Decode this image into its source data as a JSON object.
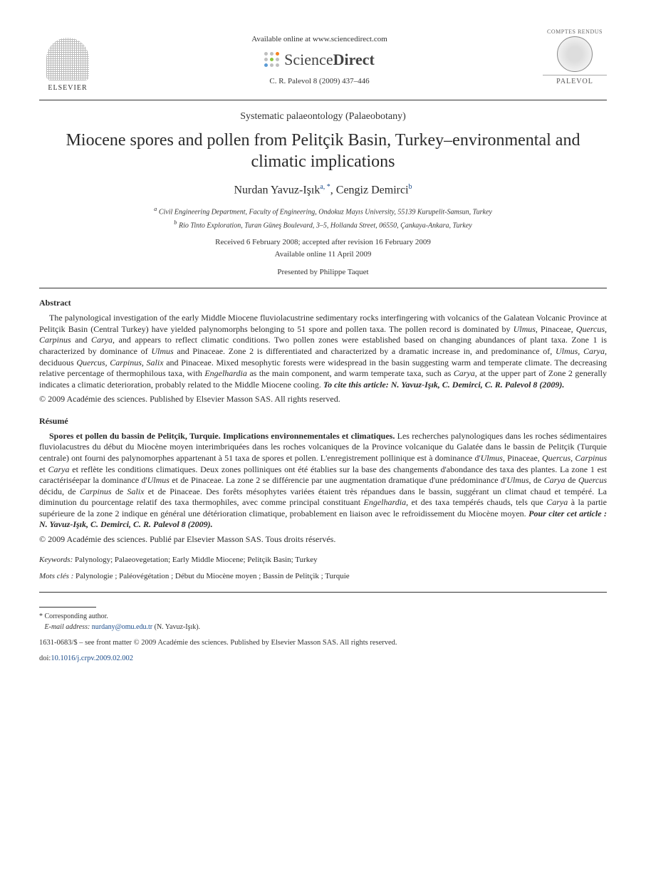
{
  "header": {
    "elsevier": "ELSEVIER",
    "available_online": "Available online at www.sciencedirect.com",
    "sciencedirect_prefix": "Science",
    "sciencedirect_suffix": "Direct",
    "citation": "C. R. Palevol 8 (2009) 437–446",
    "journal_top": "COMPTES RENDUS",
    "journal_name": "PALEVOL"
  },
  "section": "Systematic palaeontology (Palaeobotany)",
  "title": "Miocene spores and pollen from Pelitçik Basin, Turkey–environmental and climatic implications",
  "authors": {
    "a1_name": "Nurdan Yavuz-Işık",
    "a1_sup": "a, *",
    "sep": ", ",
    "a2_name": "Cengiz Demirci",
    "a2_sup": "b"
  },
  "affiliations": {
    "a": "Civil Engineering Department, Faculty of Engineering, Ondokuz Mayıs University, 55139 Kurupelit-Samsun, Turkey",
    "b": "Rio Tinto Exploration, Turan Güneş Boulevard, 3–5, Hollanda Street, 06550, Çankaya-Ankara, Turkey"
  },
  "dates": {
    "received": "Received 6 February 2008; accepted after revision 16 February 2009",
    "online": "Available online 11 April 2009"
  },
  "presented_by": "Presented by Philippe Taquet",
  "abstract": {
    "heading": "Abstract",
    "body": "The palynological investigation of the early Middle Miocene fluviolacustrine sedimentary rocks interfingering with volcanics of the Galatean Volcanic Province at Pelitçik Basin (Central Turkey) have yielded palynomorphs belonging to 51 spore and pollen taxa. The pollen record is dominated by Ulmus, Pinaceae, Quercus, Carpinus and Carya, and appears to reflect climatic conditions. Two pollen zones were established based on changing abundances of plant taxa. Zone 1 is characterized by dominance of Ulmus and Pinaceae. Zone 2 is differentiated and characterized by a dramatic increase in, and predominance of, Ulmus, Carya, deciduous Quercus, Carpinus, Salix and Pinaceae. Mixed mesophytic forests were widespread in the basin suggesting warm and temperate climate. The decreasing relative percentage of thermophilous taxa, with Engelhardia as the main component, and warm temperate taxa, such as Carya, at the upper part of Zone 2 generally indicates a climatic deterioration, probably related to the Middle Miocene cooling. To cite this article: N. Yavuz-Işık, C. Demirci, C. R. Palevol 8 (2009).",
    "copyright": "© 2009 Académie des sciences. Published by Elsevier Masson SAS. All rights reserved."
  },
  "resume": {
    "heading": "Résumé",
    "lead": "Spores et pollen du bassin de Pelitçik, Turquie. Implications environnementales et climatiques.",
    "body": " Les recherches palynologiques dans les roches sédimentaires fluviolacustres du début du Miocène moyen interimbriquées dans les roches volcaniques de la Province volcanique du Galatée dans le bassin de Pelitçik (Turquie centrale) ont fourni des palynomorphes appartenant à 51 taxa de spores et pollen. L'enregistrement pollinique est à dominance d'Ulmus, Pinaceae, Quercus, Carpinus et Carya et reflète les conditions climatiques. Deux zones polliniques ont été établies sur la base des changements d'abondance des taxa des plantes. La zone 1 est caractériséepar la dominance d'Ulmus et de Pinaceae. La zone 2 se différencie par une augmentation dramatique d'une prédominance d'Ulmus, de Carya de Quercus décidu, de Carpinus de Salix et de Pinaceae. Des forêts mésophytes variées étaient très répandues dans le bassin, suggérant un climat chaud et tempéré. La diminution du pourcentage relatif des taxa thermophiles, avec comme principal constituant Engelhardia, et des taxa tempérés chauds, tels que Carya à la partie supérieure de la zone 2 indique en général une détérioration climatique, probablement en liaison avec le refroidissement du Miocène moyen. Pour citer cet article : N. Yavuz-Işık, C. Demirci, C. R. Palevol 8 (2009).",
    "copyright": "© 2009 Académie des sciences. Publié par Elsevier Masson SAS. Tous droits réservés."
  },
  "keywords": {
    "label": "Keywords:",
    "text": " Palynology; Palaeovegetation; Early Middle Miocene; Pelitçik Basin; Turkey"
  },
  "motscles": {
    "label": "Mots clés :",
    "text": " Palynologie ; Paléovégétation ; Début du Miocène moyen ; Bassin de Pelitçik ; Turquie"
  },
  "footnotes": {
    "corresponding": "Corresponding author.",
    "email_label": "E-mail address:",
    "email": "nurdany@omu.edu.tr",
    "email_paren": " (N. Yavuz-Işık)."
  },
  "footer": {
    "issn_line": "1631-0683/$ – see front matter © 2009 Académie des sciences. Published by Elsevier Masson SAS. All rights reserved.",
    "doi_label": "doi:",
    "doi": "10.1016/j.crpv.2009.02.002"
  },
  "colors": {
    "sd_orange": "#f58220",
    "sd_green": "#8cc63f",
    "sd_blue": "#5b9bd5",
    "sd_gray": "#bfbfbf",
    "link": "#1a4b8a"
  }
}
